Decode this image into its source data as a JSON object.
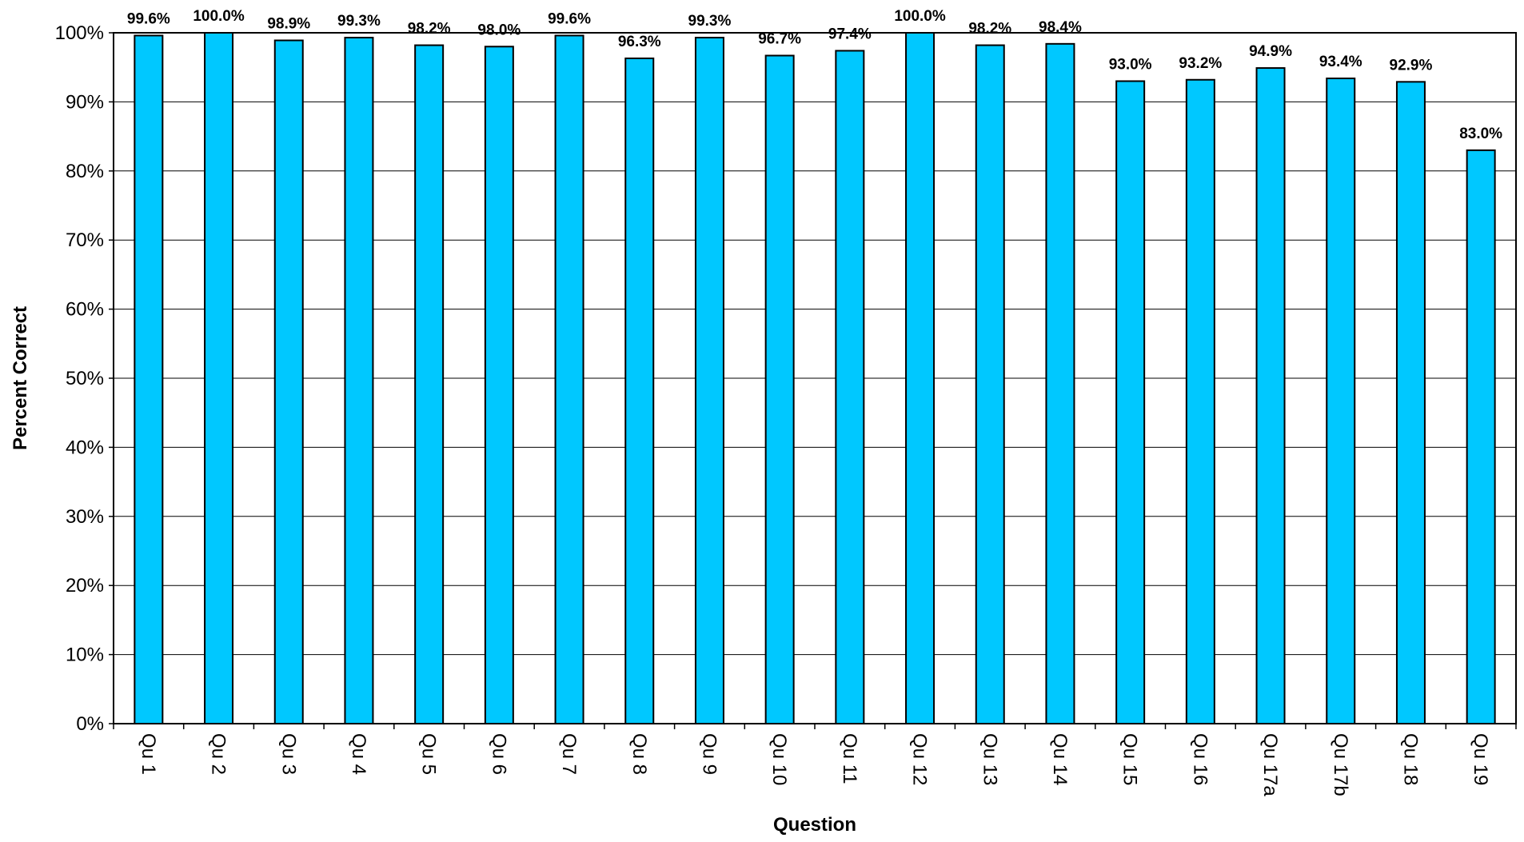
{
  "chart_data": {
    "type": "bar",
    "title": "",
    "xlabel": "Question",
    "ylabel": "Percent Correct",
    "ylim": [
      0,
      100
    ],
    "yticks": [
      0,
      10,
      20,
      30,
      40,
      50,
      60,
      70,
      80,
      90,
      100
    ],
    "ytick_labels": [
      "0%",
      "10%",
      "20%",
      "30%",
      "40%",
      "50%",
      "60%",
      "70%",
      "80%",
      "90%",
      "100%"
    ],
    "grid": true,
    "legend": false,
    "bar_color": "#00C8FF",
    "categories": [
      "Qu 1",
      "Qu 2",
      "Qu 3",
      "Qu 4",
      "Qu 5",
      "Qu 6",
      "Qu 7",
      "Qu 8",
      "Qu 9",
      "Qu 10",
      "Qu 11",
      "Qu 12",
      "Qu 13",
      "Qu 14",
      "Qu 15",
      "Qu 16",
      "Qu 17a",
      "Qu 17b",
      "Qu 18",
      "Qu 19"
    ],
    "values": [
      99.6,
      100.0,
      98.9,
      99.3,
      98.2,
      98.0,
      99.6,
      96.3,
      99.3,
      96.7,
      97.4,
      100.0,
      98.2,
      98.4,
      93.0,
      93.2,
      94.9,
      93.4,
      92.9,
      83.0
    ],
    "data_labels": [
      "99.6%",
      "100.0%",
      "98.9%",
      "99.3%",
      "98.2%",
      "98.0%",
      "99.6%",
      "96.3%",
      "99.3%",
      "96.7%",
      "97.4%",
      "100.0%",
      "98.2%",
      "98.4%",
      "93.0%",
      "93.2%",
      "94.9%",
      "93.4%",
      "92.9%",
      "83.0%"
    ]
  }
}
